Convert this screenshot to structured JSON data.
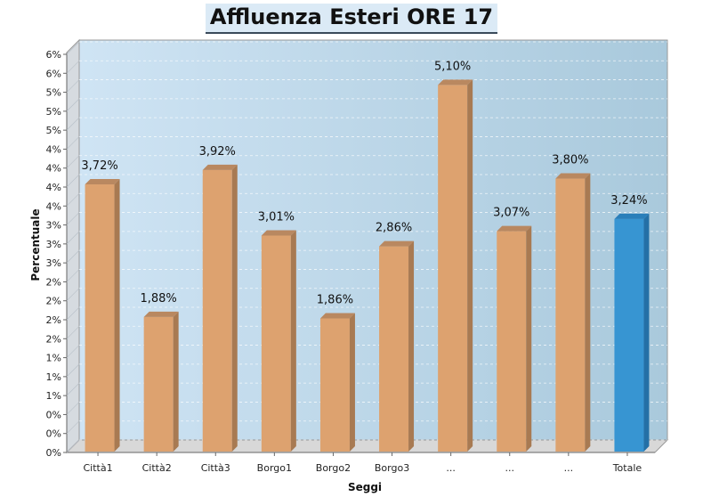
{
  "chart_data": {
    "type": "bar",
    "title": "Affluenza Esteri ORE 17",
    "xlabel": "Seggi",
    "ylabel": "Percentuale",
    "categories": [
      "Città1",
      "Città2",
      "Città3",
      "Borgo1",
      "Borgo2",
      "Borgo3",
      "...",
      "...",
      "...",
      "Totale"
    ],
    "values": [
      3.72,
      1.88,
      3.92,
      3.01,
      1.86,
      2.86,
      5.1,
      3.07,
      3.8,
      3.24
    ],
    "data_labels": [
      "3,72%",
      "1,88%",
      "3,92%",
      "3,01%",
      "1,86%",
      "2,86%",
      "5,10%",
      "3,07%",
      "3,80%",
      "3,24%"
    ],
    "y_tick_labels": [
      "0%",
      "0%",
      "0%",
      "1%",
      "1%",
      "1%",
      "2%",
      "2%",
      "2%",
      "2%",
      "3%",
      "3%",
      "3%",
      "4%",
      "4%",
      "4%",
      "4%",
      "5%",
      "5%",
      "5%",
      "6%",
      "6%"
    ],
    "ylim": [
      0,
      5.5
    ],
    "grid": true,
    "style": "3d",
    "colors": {
      "bar": "#dda26f",
      "bar_side": "#a87a52",
      "bar_top": "#b98860",
      "highlight_bar": "#3795d2",
      "highlight_side": "#2470a6",
      "highlight_top": "#2a7fba"
    },
    "highlight_category_index": 9
  }
}
